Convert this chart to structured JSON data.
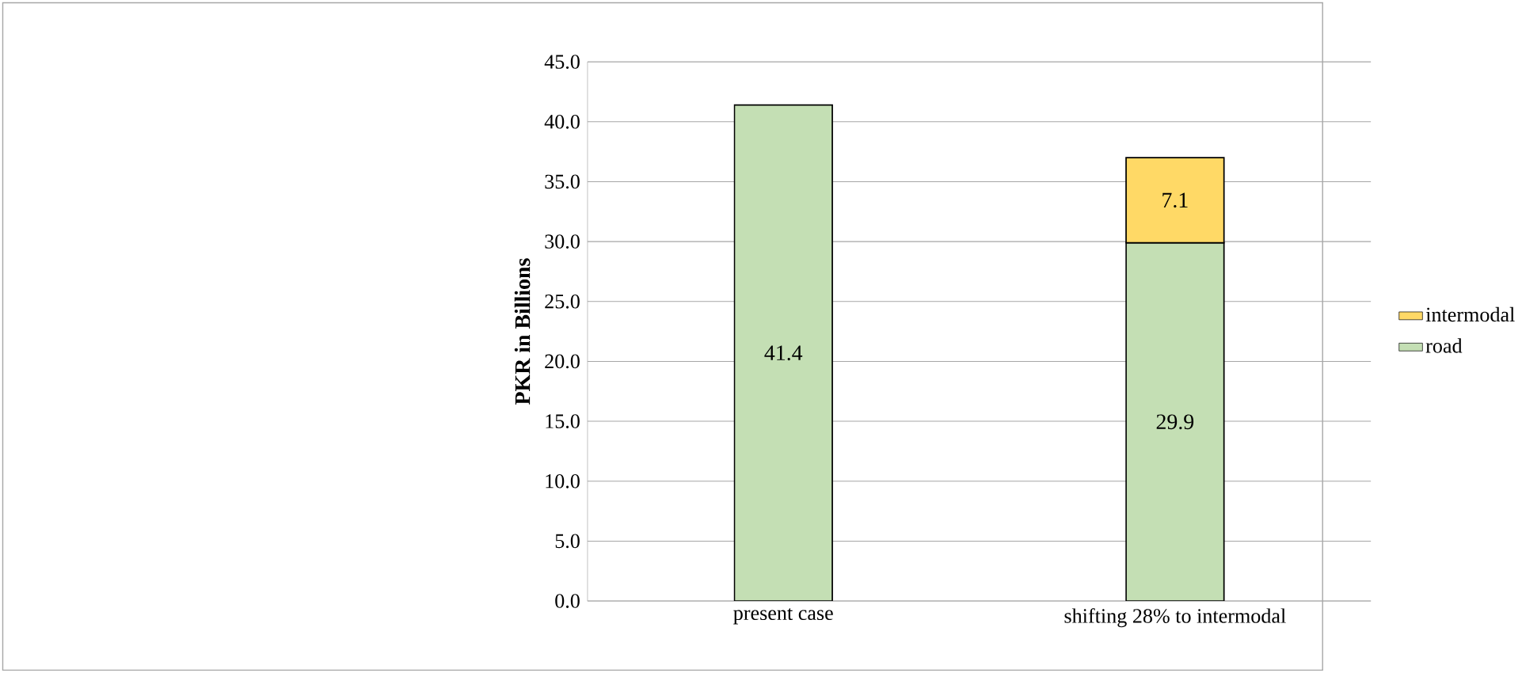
{
  "chart_data": {
    "type": "bar",
    "stacked": true,
    "ylabel": "PKR in Billions",
    "categories": [
      "present case",
      "shifting 28% to intermodal"
    ],
    "series": [
      {
        "name": "road",
        "color": "#c4dfb4",
        "values": [
          41.4,
          29.9
        ]
      },
      {
        "name": "intermodal",
        "color": "#ffd966",
        "values": [
          null,
          7.1
        ]
      }
    ],
    "ylim": [
      0,
      45
    ],
    "yticks": [
      {
        "value": 0,
        "label": "0.0"
      },
      {
        "value": 5,
        "label": "5.0"
      },
      {
        "value": 10,
        "label": "10.0"
      },
      {
        "value": 15,
        "label": "15.0"
      },
      {
        "value": 20,
        "label": "20.0"
      },
      {
        "value": 25,
        "label": "25.0"
      },
      {
        "value": 30,
        "label": "30.0"
      },
      {
        "value": 35,
        "label": "35.0"
      },
      {
        "value": 40,
        "label": "40.0"
      },
      {
        "value": 45,
        "label": "45.0"
      }
    ],
    "grid": "y",
    "legend": "right",
    "data_labels": true
  }
}
